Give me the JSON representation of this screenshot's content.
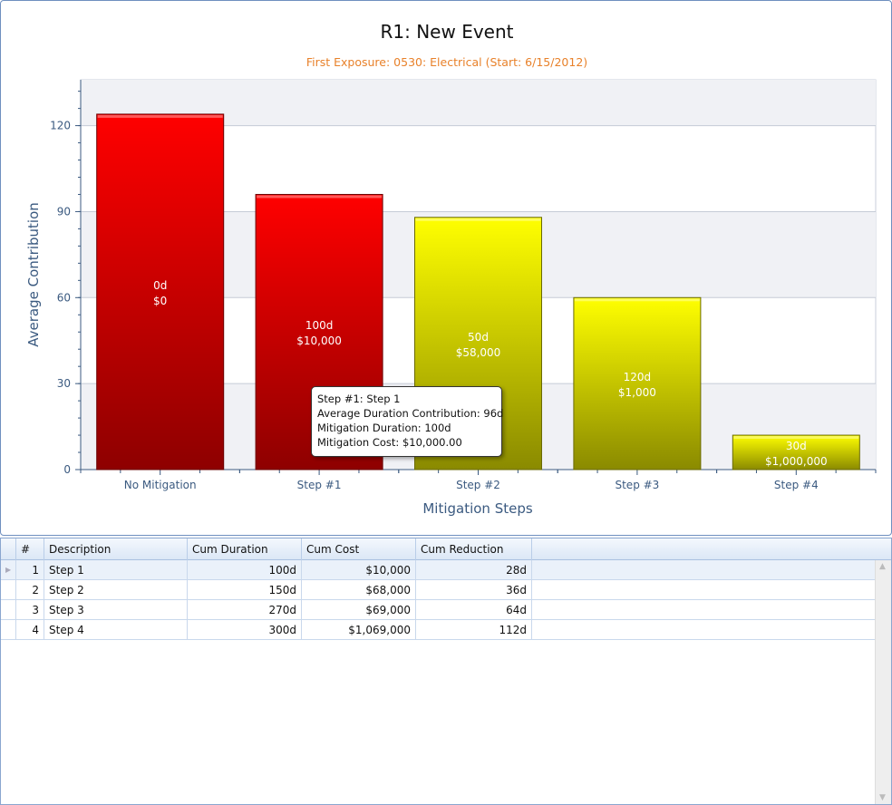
{
  "chart_data": {
    "type": "bar",
    "title": "R1: New Event",
    "subtitle": "First Exposure: 0530: Electrical (Start: 6/15/2012)",
    "xlabel": "Mitigation Steps",
    "ylabel": "Average Contribution",
    "ylim": [
      0,
      136
    ],
    "yticks": [
      0,
      30,
      60,
      90,
      120
    ],
    "grid": true,
    "categories": [
      "No Mitigation",
      "Step #1",
      "Step #2",
      "Step #3",
      "Step #4"
    ],
    "values": [
      124,
      96,
      88,
      60,
      12
    ],
    "bar_labels": [
      [
        "0d",
        "$0"
      ],
      [
        "100d",
        "$10,000"
      ],
      [
        "50d",
        "$58,000"
      ],
      [
        "120d",
        "$1,000"
      ],
      [
        "30d",
        "$1,000,000"
      ]
    ],
    "bar_colors": [
      "red",
      "red",
      "yellow",
      "yellow",
      "yellow"
    ]
  },
  "colors": {
    "title": "#111111",
    "subtitle": "#e8812a",
    "axis": "#3b5a80",
    "red_top": "#ff0000",
    "red_bottom": "#8e0000",
    "yellow_top": "#ffff00",
    "yellow_bottom": "#8a8a00",
    "band": "#f0f1f5"
  },
  "tooltip": {
    "lines": [
      "Step #1: Step 1",
      "Average Duration Contribution: 96d",
      "Mitigation Duration: 100d",
      "Mitigation Cost: $10,000.00"
    ]
  },
  "table": {
    "columns": [
      "#",
      "Description",
      "Cum Duration",
      "Cum Cost",
      "Cum Reduction"
    ],
    "rows": [
      [
        "1",
        "Step 1",
        "100d",
        "$10,000",
        "28d"
      ],
      [
        "2",
        "Step 2",
        "150d",
        "$68,000",
        "36d"
      ],
      [
        "3",
        "Step 3",
        "270d",
        "$69,000",
        "64d"
      ],
      [
        "4",
        "Step 4",
        "300d",
        "$1,069,000",
        "112d"
      ]
    ]
  }
}
